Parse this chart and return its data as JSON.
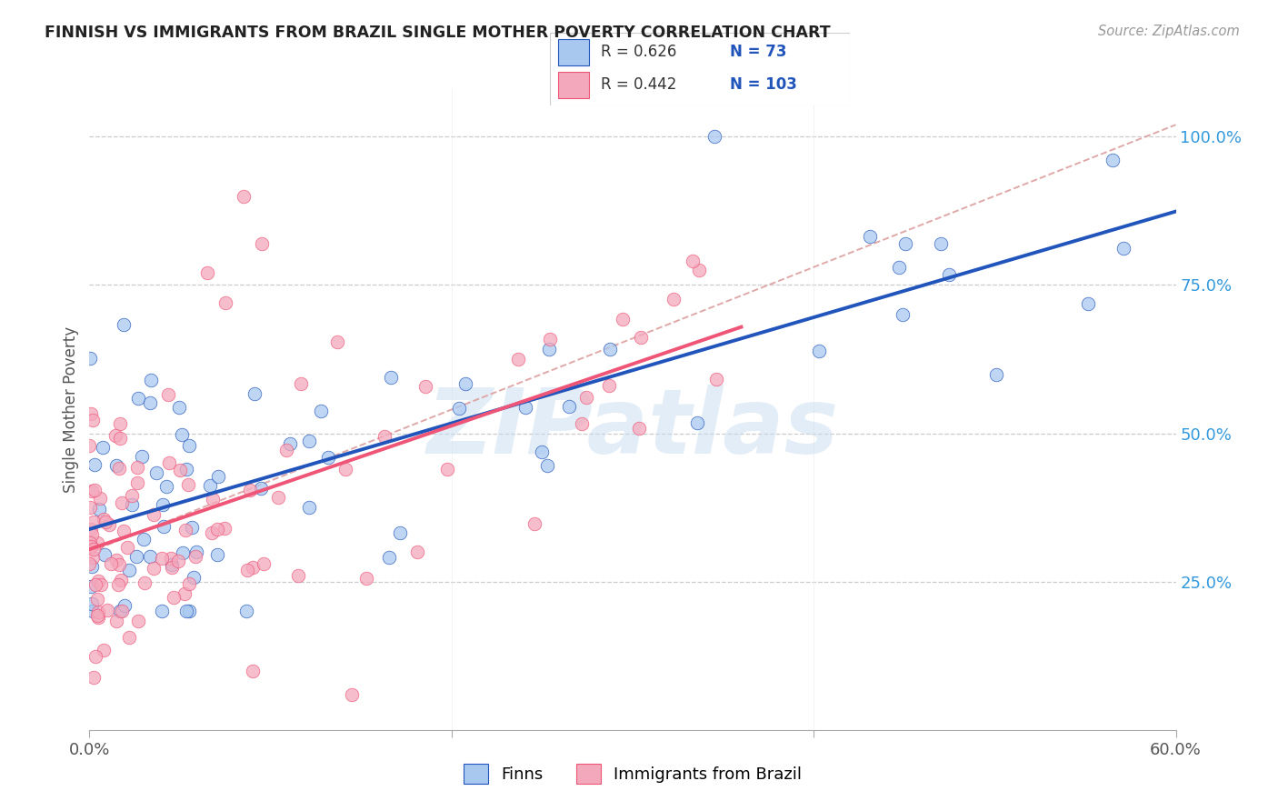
{
  "title": "FINNISH VS IMMIGRANTS FROM BRAZIL SINGLE MOTHER POVERTY CORRELATION CHART",
  "source": "Source: ZipAtlas.com",
  "ylabel": "Single Mother Poverty",
  "ylabel_right_ticks": [
    "25.0%",
    "50.0%",
    "75.0%",
    "100.0%"
  ],
  "ylabel_right_vals": [
    0.25,
    0.5,
    0.75,
    1.0
  ],
  "x_min": 0.0,
  "x_max": 0.6,
  "y_min": 0.0,
  "y_max": 1.08,
  "legend_r_blue": "0.626",
  "legend_n_blue": "73",
  "legend_r_pink": "0.442",
  "legend_n_pink": "103",
  "color_blue": "#A8C8F0",
  "color_pink": "#F4A8BC",
  "color_line_blue": "#2255BB",
  "color_line_pink": "#EE5577",
  "color_line_diag": "#CCAAAA",
  "watermark": "ZIPatlas",
  "finns_label": "Finns",
  "brazil_label": "Immigrants from Brazil",
  "seed": 12345
}
